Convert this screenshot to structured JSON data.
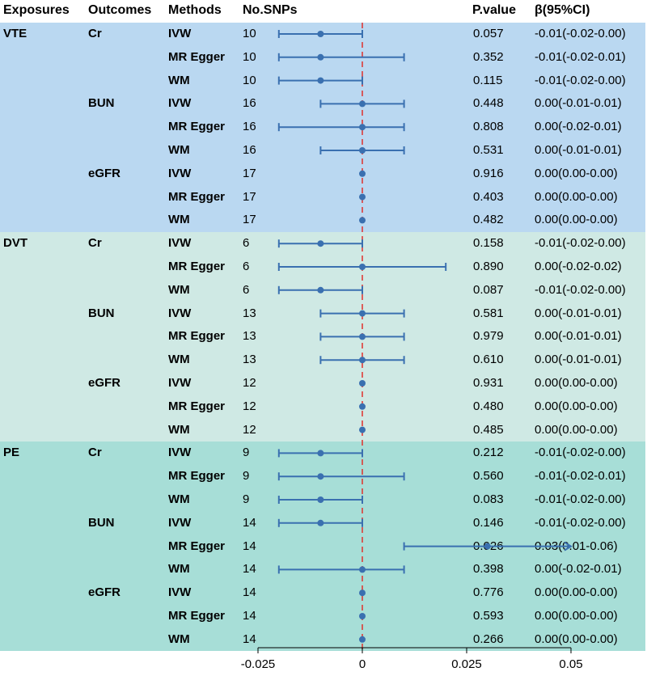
{
  "headers": {
    "exposures": "Exposures",
    "outcomes": "Outcomes",
    "methods": "Methods",
    "nsnps": "No.SNPs",
    "pvalue": "P.value",
    "beta": "β(95%CI)"
  },
  "colors": {
    "band_vte": "#bad8f1",
    "band_dvt": "#cfe9e4",
    "band_pe": "#a7ded7",
    "marker": "#3a70b0",
    "reference_line": "#e0302c"
  },
  "groups": [
    {
      "exposure": "VTE",
      "outcomes": [
        {
          "outcome": "Cr",
          "rows": [
            {
              "method": "IVW",
              "nsnps": "10",
              "p": "0.057",
              "ci_text": "-0.01(-0.02-0.00)",
              "beta": -0.01,
              "lo": -0.02,
              "hi": 0.0
            },
            {
              "method": "MR Egger",
              "nsnps": "10",
              "p": "0.352",
              "ci_text": "-0.01(-0.02-0.01)",
              "beta": -0.01,
              "lo": -0.02,
              "hi": 0.01
            },
            {
              "method": "WM",
              "nsnps": "10",
              "p": "0.115",
              "ci_text": "-0.01(-0.02-0.00)",
              "beta": -0.01,
              "lo": -0.02,
              "hi": 0.0
            }
          ]
        },
        {
          "outcome": "BUN",
          "rows": [
            {
              "method": "IVW",
              "nsnps": "16",
              "p": "0.448",
              "ci_text": "0.00(-0.01-0.01)",
              "beta": 0.0,
              "lo": -0.01,
              "hi": 0.01
            },
            {
              "method": "MR Egger",
              "nsnps": "16",
              "p": "0.808",
              "ci_text": "0.00(-0.02-0.01)",
              "beta": 0.0,
              "lo": -0.02,
              "hi": 0.01
            },
            {
              "method": "WM",
              "nsnps": "16",
              "p": "0.531",
              "ci_text": "0.00(-0.01-0.01)",
              "beta": 0.0,
              "lo": -0.01,
              "hi": 0.01
            }
          ]
        },
        {
          "outcome": "eGFR",
          "rows": [
            {
              "method": "IVW",
              "nsnps": "17",
              "p": "0.916",
              "ci_text": "0.00(0.00-0.00)",
              "beta": 0.0,
              "lo": 0.0,
              "hi": 0.0
            },
            {
              "method": "MR Egger",
              "nsnps": "17",
              "p": "0.403",
              "ci_text": "0.00(0.00-0.00)",
              "beta": 0.0,
              "lo": 0.0,
              "hi": 0.0
            },
            {
              "method": "WM",
              "nsnps": "17",
              "p": "0.482",
              "ci_text": "0.00(0.00-0.00)",
              "beta": 0.0,
              "lo": 0.0,
              "hi": 0.0
            }
          ]
        }
      ]
    },
    {
      "exposure": "DVT",
      "outcomes": [
        {
          "outcome": "Cr",
          "rows": [
            {
              "method": "IVW",
              "nsnps": "6",
              "p": "0.158",
              "ci_text": "-0.01(-0.02-0.00)",
              "beta": -0.01,
              "lo": -0.02,
              "hi": 0.0
            },
            {
              "method": "MR Egger",
              "nsnps": "6",
              "p": "0.890",
              "ci_text": "0.00(-0.02-0.02)",
              "beta": 0.0,
              "lo": -0.02,
              "hi": 0.02
            },
            {
              "method": "WM",
              "nsnps": "6",
              "p": "0.087",
              "ci_text": "-0.01(-0.02-0.00)",
              "beta": -0.01,
              "lo": -0.02,
              "hi": 0.0
            }
          ]
        },
        {
          "outcome": "BUN",
          "rows": [
            {
              "method": "IVW",
              "nsnps": "13",
              "p": "0.581",
              "ci_text": "0.00(-0.01-0.01)",
              "beta": 0.0,
              "lo": -0.01,
              "hi": 0.01
            },
            {
              "method": "MR Egger",
              "nsnps": "13",
              "p": "0.979",
              "ci_text": "0.00(-0.01-0.01)",
              "beta": 0.0,
              "lo": -0.01,
              "hi": 0.01
            },
            {
              "method": "WM",
              "nsnps": "13",
              "p": "0.610",
              "ci_text": "0.00(-0.01-0.01)",
              "beta": 0.0,
              "lo": -0.01,
              "hi": 0.01
            }
          ]
        },
        {
          "outcome": "eGFR",
          "rows": [
            {
              "method": "IVW",
              "nsnps": "12",
              "p": "0.931",
              "ci_text": "0.00(0.00-0.00)",
              "beta": 0.0,
              "lo": 0.0,
              "hi": 0.0
            },
            {
              "method": "MR Egger",
              "nsnps": "12",
              "p": "0.480",
              "ci_text": "0.00(0.00-0.00)",
              "beta": 0.0,
              "lo": 0.0,
              "hi": 0.0
            },
            {
              "method": "WM",
              "nsnps": "12",
              "p": "0.485",
              "ci_text": "0.00(0.00-0.00)",
              "beta": 0.0,
              "lo": 0.0,
              "hi": 0.0
            }
          ]
        }
      ]
    },
    {
      "exposure": "PE",
      "outcomes": [
        {
          "outcome": "Cr",
          "rows": [
            {
              "method": "IVW",
              "nsnps": "9",
              "p": "0.212",
              "ci_text": "-0.01(-0.02-0.00)",
              "beta": -0.01,
              "lo": -0.02,
              "hi": 0.0
            },
            {
              "method": "MR Egger",
              "nsnps": "9",
              "p": "0.560",
              "ci_text": "-0.01(-0.02-0.01)",
              "beta": -0.01,
              "lo": -0.02,
              "hi": 0.01
            },
            {
              "method": "WM",
              "nsnps": "9",
              "p": "0.083",
              "ci_text": "-0.01(-0.02-0.00)",
              "beta": -0.01,
              "lo": -0.02,
              "hi": 0.0
            }
          ]
        },
        {
          "outcome": "BUN",
          "rows": [
            {
              "method": "IVW",
              "nsnps": "14",
              "p": "0.146",
              "ci_text": "-0.01(-0.02-0.00)",
              "beta": -0.01,
              "lo": -0.02,
              "hi": 0.0
            },
            {
              "method": "MR Egger",
              "nsnps": "14",
              "p": "0.026",
              "ci_text": "0.03(0.01-0.06)",
              "beta": 0.03,
              "lo": 0.01,
              "hi": 0.06,
              "arrow_right": true
            },
            {
              "method": "WM",
              "nsnps": "14",
              "p": "0.398",
              "ci_text": "0.00(-0.02-0.01)",
              "beta": 0.0,
              "lo": -0.02,
              "hi": 0.01
            }
          ]
        },
        {
          "outcome": "eGFR",
          "rows": [
            {
              "method": "IVW",
              "nsnps": "14",
              "p": "0.776",
              "ci_text": "0.00(0.00-0.00)",
              "beta": 0.0,
              "lo": 0.0,
              "hi": 0.0
            },
            {
              "method": "MR Egger",
              "nsnps": "14",
              "p": "0.593",
              "ci_text": "0.00(0.00-0.00)",
              "beta": 0.0,
              "lo": 0.0,
              "hi": 0.0
            },
            {
              "method": "WM",
              "nsnps": "14",
              "p": "0.266",
              "ci_text": "0.00(0.00-0.00)",
              "beta": 0.0,
              "lo": 0.0,
              "hi": 0.0
            }
          ]
        }
      ]
    }
  ],
  "chart_data": {
    "type": "forest",
    "title": "",
    "xlabel": "",
    "ylabel": "",
    "xlim": [
      -0.025,
      0.05
    ],
    "x_ticks": [
      -0.025,
      0,
      0.025,
      0.05
    ],
    "x_tick_labels": [
      "-0.025",
      "0",
      "0.025",
      "0.05"
    ],
    "reference_line": 0,
    "grid": false,
    "legend": "none"
  }
}
